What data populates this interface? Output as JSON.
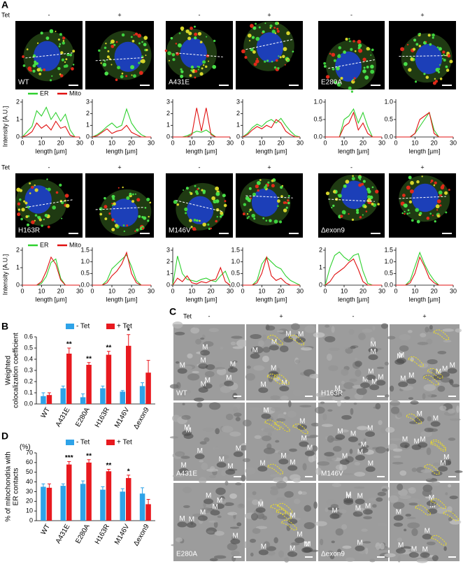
{
  "panel_labels": [
    "A",
    "B",
    "C",
    "D"
  ],
  "tet_label": "Tet",
  "tet_states": [
    "-",
    "+"
  ],
  "image_rows": [
    [
      "WT",
      "A431E",
      "E280A"
    ],
    [
      "H163R",
      "M146V",
      "Δexon9"
    ]
  ],
  "profile_legend": [
    {
      "name": "ER",
      "color": "#2fd12f"
    },
    {
      "name": "Mito",
      "color": "#e01010"
    }
  ],
  "em_labels": [
    [
      "WT",
      "H163R"
    ],
    [
      "A431E",
      "M146V"
    ],
    [
      "E280A",
      "Δexon9"
    ]
  ],
  "em_mito_label": "M",
  "chart_data": [
    {
      "type": "line",
      "xlabel": "length [µm]",
      "ylabel": "Intensity [A.U.]",
      "x": [
        0,
        2.5,
        5,
        7.5,
        10,
        12.5,
        15,
        17.5,
        20,
        22.5,
        25,
        27.5,
        30
      ],
      "xlim": [
        0,
        30
      ],
      "xticks": [
        0,
        10,
        20,
        30
      ],
      "ylim": [
        0,
        2
      ],
      "yticks": [
        0,
        1,
        2
      ],
      "series": [
        {
          "color": "#2fd12f",
          "values": [
            0,
            0.3,
            0.6,
            1.5,
            1.2,
            1.7,
            1.0,
            1.4,
            0.9,
            1.3,
            0.4,
            0,
            0
          ]
        },
        {
          "color": "#e01010",
          "values": [
            0,
            0.1,
            0.3,
            0.8,
            0.5,
            0.7,
            0.4,
            0.9,
            0.5,
            0.6,
            0.1,
            0,
            0
          ]
        }
      ]
    },
    {
      "type": "line",
      "xlabel": "length [µm]",
      "x": [
        0,
        2.5,
        5,
        7.5,
        10,
        12.5,
        15,
        17.5,
        20,
        22.5,
        25,
        27.5,
        30
      ],
      "xlim": [
        0,
        30
      ],
      "xticks": [
        0,
        10,
        20,
        30
      ],
      "ylim": [
        0,
        3
      ],
      "yticks": [
        0,
        1,
        2,
        3
      ],
      "series": [
        {
          "color": "#2fd12f",
          "values": [
            0,
            0.2,
            0.5,
            0.9,
            1.2,
            0.8,
            1.0,
            2.4,
            1.2,
            0.6,
            0.2,
            0,
            0
          ]
        },
        {
          "color": "#e01010",
          "values": [
            0,
            0.1,
            0.4,
            0.7,
            0.3,
            0.5,
            0.6,
            1.0,
            0.4,
            0.2,
            0,
            0,
            0
          ]
        }
      ]
    },
    {
      "type": "line",
      "xlabel": "length [µm]",
      "x": [
        0,
        2.5,
        5,
        7.5,
        10,
        12.5,
        15,
        17.5,
        20,
        22.5,
        25,
        27.5,
        30
      ],
      "xlim": [
        0,
        30
      ],
      "xticks": [
        0,
        10,
        20,
        30
      ],
      "ylim": [
        0,
        3
      ],
      "yticks": [
        0,
        1,
        2,
        3
      ],
      "series": [
        {
          "color": "#2fd12f",
          "values": [
            0,
            0,
            0,
            0.1,
            0.3,
            0.5,
            0.4,
            0.6,
            0.3,
            0,
            0,
            0,
            0
          ]
        },
        {
          "color": "#e01010",
          "values": [
            0,
            0,
            0,
            0,
            0.2,
            2.5,
            0.5,
            2.5,
            0.2,
            0,
            0,
            0,
            0
          ]
        }
      ]
    },
    {
      "type": "line",
      "xlabel": "length [µm]",
      "x": [
        0,
        2.5,
        5,
        7.5,
        10,
        12.5,
        15,
        17.5,
        20,
        22.5,
        25,
        27.5,
        30
      ],
      "xlim": [
        0,
        30
      ],
      "xticks": [
        0,
        10,
        20,
        30
      ],
      "ylim": [
        0,
        3
      ],
      "yticks": [
        0,
        1,
        2,
        3
      ],
      "series": [
        {
          "color": "#2fd12f",
          "values": [
            0,
            0.3,
            0.8,
            1.1,
            0.9,
            1.3,
            1.5,
            1.2,
            1.6,
            1.0,
            0.5,
            0.1,
            0
          ]
        },
        {
          "color": "#e01010",
          "values": [
            0,
            0.2,
            0.6,
            0.9,
            0.7,
            1.0,
            0.8,
            1.5,
            1.2,
            0.5,
            0.2,
            0,
            0
          ]
        }
      ]
    },
    {
      "type": "line",
      "xlabel": "length [µm]",
      "x": [
        0,
        2.5,
        5,
        7.5,
        10,
        12.5,
        15,
        17.5,
        20,
        22.5,
        25,
        27.5,
        30
      ],
      "xlim": [
        0,
        30
      ],
      "xticks": [
        0,
        10,
        20,
        30
      ],
      "ylim": [
        0,
        1
      ],
      "yticks": [
        {
          "value": 0,
          "label": "0.0"
        },
        {
          "value": 0.5,
          "label": "0.5"
        },
        {
          "value": 1,
          "label": "1.0"
        }
      ],
      "series": [
        {
          "color": "#2fd12f",
          "values": [
            0,
            0,
            0,
            0,
            0.5,
            0.6,
            0.8,
            0.4,
            0.7,
            0.3,
            0,
            0,
            0
          ]
        },
        {
          "color": "#e01010",
          "values": [
            0,
            0,
            0,
            0,
            0.3,
            0.4,
            0.7,
            0.2,
            0.4,
            0.1,
            0,
            0,
            0
          ]
        }
      ]
    },
    {
      "type": "line",
      "xlabel": "length [µm]",
      "x": [
        0,
        2.5,
        5,
        7.5,
        10,
        12.5,
        15,
        17.5,
        20,
        22.5,
        25,
        27.5,
        30
      ],
      "xlim": [
        0,
        30
      ],
      "xticks": [
        0,
        10,
        20,
        30
      ],
      "ylim": [
        0,
        1
      ],
      "yticks": [
        {
          "value": 0,
          "label": "0.0"
        },
        {
          "value": 0.5,
          "label": "0.5"
        },
        {
          "value": 1,
          "label": "1.0"
        }
      ],
      "series": [
        {
          "color": "#2fd12f",
          "values": [
            0,
            0,
            0,
            0,
            0.1,
            0.3,
            0.5,
            0.7,
            0.2,
            0,
            0,
            0,
            0
          ]
        },
        {
          "color": "#e01010",
          "values": [
            0,
            0,
            0,
            0,
            0.1,
            0.5,
            0.6,
            0.7,
            0.1,
            0,
            0,
            0,
            0
          ]
        }
      ]
    },
    {
      "type": "line",
      "xlabel": "length [µm]",
      "ylabel": "Intensity [A.U.]",
      "x": [
        0,
        2.5,
        5,
        7.5,
        10,
        12.5,
        15,
        17.5,
        20,
        22.5,
        25,
        27.5,
        30
      ],
      "xlim": [
        0,
        30
      ],
      "xticks": [
        0,
        10,
        20,
        30
      ],
      "ylim": [
        0,
        2
      ],
      "yticks": [
        0,
        1,
        2
      ],
      "series": [
        {
          "color": "#2fd12f",
          "values": [
            0,
            0,
            0,
            0,
            0.1,
            0.5,
            1.3,
            1.5,
            0.4,
            0,
            0,
            0,
            0
          ]
        },
        {
          "color": "#e01010",
          "values": [
            0,
            0,
            0,
            0,
            0.2,
            0.8,
            1.6,
            1.2,
            0.3,
            0,
            0,
            0,
            0
          ]
        }
      ]
    },
    {
      "type": "line",
      "xlabel": "length [µm]",
      "x": [
        0,
        2.5,
        5,
        7.5,
        10,
        12.5,
        15,
        17.5,
        20,
        22.5,
        25,
        27.5,
        30
      ],
      "xlim": [
        0,
        30
      ],
      "xticks": [
        0,
        10,
        20,
        30
      ],
      "ylim": [
        0,
        1.5
      ],
      "yticks": [
        {
          "value": 0,
          "label": "0.0"
        },
        {
          "value": 0.5,
          "label": "0.5"
        },
        {
          "value": 1,
          "label": "1.0"
        },
        {
          "value": 1.5,
          "label": "1.5"
        }
      ],
      "series": [
        {
          "color": "#2fd12f",
          "values": [
            0,
            0,
            0,
            0.2,
            0.7,
            0.9,
            1.1,
            1.3,
            0.8,
            0.2,
            0,
            0,
            0
          ]
        },
        {
          "color": "#e01010",
          "values": [
            0,
            0,
            0,
            0.1,
            0.4,
            0.6,
            0.9,
            1.4,
            0.5,
            0.1,
            0,
            0,
            0
          ]
        }
      ]
    },
    {
      "type": "line",
      "xlabel": "length [µm]",
      "x": [
        0,
        2.5,
        5,
        7.5,
        10,
        12.5,
        15,
        17.5,
        20,
        22.5,
        25,
        27.5,
        30
      ],
      "xlim": [
        0,
        30
      ],
      "xticks": [
        0,
        10,
        20,
        30
      ],
      "ylim": [
        0,
        3
      ],
      "yticks": [
        0,
        1,
        2,
        3
      ],
      "series": [
        {
          "color": "#2fd12f",
          "values": [
            0,
            2.5,
            1.0,
            0.5,
            0.4,
            0.3,
            0.5,
            0.6,
            0.4,
            0.3,
            0.8,
            1.2,
            0.2
          ]
        },
        {
          "color": "#e01010",
          "values": [
            0,
            0.6,
            0.3,
            0.8,
            0.2,
            0.1,
            0.3,
            0.2,
            0.4,
            0.5,
            1.5,
            0.3,
            0
          ]
        }
      ]
    },
    {
      "type": "line",
      "xlabel": "length [µm]",
      "x": [
        0,
        2.5,
        5,
        7.5,
        10,
        12.5,
        15,
        17.5,
        20,
        22.5,
        25,
        27.5,
        30
      ],
      "xlim": [
        0,
        30
      ],
      "xticks": [
        0,
        10,
        20,
        30
      ],
      "ylim": [
        0,
        1.5
      ],
      "yticks": [
        {
          "value": 0,
          "label": "0.0"
        },
        {
          "value": 0.5,
          "label": "0.5"
        },
        {
          "value": 1,
          "label": "1.0"
        },
        {
          "value": 1.5,
          "label": "1.5"
        }
      ],
      "series": [
        {
          "color": "#2fd12f",
          "values": [
            0,
            0,
            0,
            0.2,
            0.9,
            1.2,
            1.0,
            0.8,
            0.7,
            0.4,
            0.2,
            0.1,
            0
          ]
        },
        {
          "color": "#e01010",
          "values": [
            0,
            0,
            0,
            0.1,
            0.5,
            1.2,
            0.4,
            0.2,
            0.3,
            0.1,
            0,
            0,
            0
          ]
        }
      ]
    },
    {
      "type": "line",
      "xlabel": "length [µm]",
      "x": [
        0,
        2.5,
        5,
        7.5,
        10,
        12.5,
        15,
        17.5,
        20,
        22.5,
        25,
        27.5,
        30
      ],
      "xlim": [
        0,
        30
      ],
      "xticks": [
        0,
        10,
        20,
        30
      ],
      "ylim": [
        0,
        2
      ],
      "yticks": [
        0,
        1,
        2
      ],
      "series": [
        {
          "color": "#2fd12f",
          "values": [
            0,
            1.0,
            1.7,
            1.9,
            1.6,
            1.4,
            1.7,
            1.8,
            0.8,
            0.1,
            0,
            0,
            0
          ]
        },
        {
          "color": "#e01010",
          "values": [
            0,
            0.2,
            0.6,
            0.8,
            1.0,
            1.3,
            1.5,
            0.9,
            0.2,
            0,
            0,
            0,
            0
          ]
        }
      ]
    },
    {
      "type": "line",
      "xlabel": "length [µm]",
      "x": [
        0,
        2.5,
        5,
        7.5,
        10,
        12.5,
        15,
        17.5,
        20,
        22.5,
        25,
        27.5,
        30
      ],
      "xlim": [
        0,
        30
      ],
      "xticks": [
        0,
        10,
        20,
        30
      ],
      "ylim": [
        0,
        1.5
      ],
      "yticks": [
        {
          "value": 0,
          "label": "0.0"
        },
        {
          "value": 0.5,
          "label": "0.5"
        },
        {
          "value": 1,
          "label": "1.0"
        },
        {
          "value": 1.5,
          "label": "1.5"
        }
      ],
      "series": [
        {
          "color": "#2fd12f",
          "values": [
            0,
            0,
            0,
            0.2,
            0.8,
            1.4,
            0.9,
            0.5,
            0.2,
            0,
            0,
            0,
            0
          ]
        },
        {
          "color": "#e01010",
          "values": [
            0,
            0,
            0,
            0.1,
            0.5,
            1.2,
            0.8,
            0.3,
            0.1,
            0,
            0,
            0,
            0
          ]
        }
      ]
    },
    {
      "type": "bar",
      "ylabel": [
        "Weighted",
        "colocalization coefficient"
      ],
      "categories": [
        "WT",
        "A431E",
        "E280A",
        "H163R",
        "M146V",
        "Δexon9"
      ],
      "series": [
        {
          "name": "- Tet",
          "color": "#2ea3e8",
          "values": [
            0.07,
            0.14,
            0.06,
            0.14,
            0.11,
            0.16
          ],
          "errors": [
            0.03,
            0.02,
            0.03,
            0.02,
            0.01,
            0.03
          ]
        },
        {
          "name": "+ Tet",
          "color": "#e8191f",
          "values": [
            0.08,
            0.45,
            0.35,
            0.44,
            0.52,
            0.28
          ],
          "errors": [
            0.02,
            0.05,
            0.02,
            0.03,
            0.1,
            0.11
          ]
        }
      ],
      "annotations": [
        null,
        "**",
        "**",
        "**",
        "*",
        null
      ],
      "ylim": [
        0,
        0.6
      ],
      "yticks": [
        {
          "value": 0,
          "label": "0.0"
        },
        {
          "value": 0.1,
          "label": "0.1"
        },
        {
          "value": 0.2,
          "label": "0.2"
        },
        {
          "value": 0.3,
          "label": "0.3"
        },
        {
          "value": 0.4,
          "label": "0.4"
        },
        {
          "value": 0.5,
          "label": "0.5"
        },
        {
          "value": 0.6,
          "label": "0.6"
        }
      ]
    },
    {
      "type": "bar",
      "unit_label": "(%)",
      "ylabel": [
        "% of mitochondria with",
        "ER contacts"
      ],
      "categories": [
        "WT",
        "A431E",
        "E280A",
        "H163R",
        "M146V",
        "Δexon9"
      ],
      "series": [
        {
          "name": "- Tet",
          "color": "#2ea3e8",
          "values": [
            35,
            36,
            38,
            32,
            30,
            28
          ],
          "errors": [
            3,
            2,
            3,
            3,
            3,
            6
          ]
        },
        {
          "name": "+ Tet",
          "color": "#e8191f",
          "values": [
            34,
            58,
            60,
            51,
            44,
            17
          ],
          "errors": [
            4,
            3,
            3,
            2,
            3,
            5
          ]
        }
      ],
      "annotations": [
        null,
        "***",
        "**",
        "**",
        "*",
        null
      ],
      "ylim": [
        0,
        70
      ],
      "yticks": [
        0,
        10,
        20,
        30,
        40,
        50,
        60,
        70
      ]
    }
  ]
}
